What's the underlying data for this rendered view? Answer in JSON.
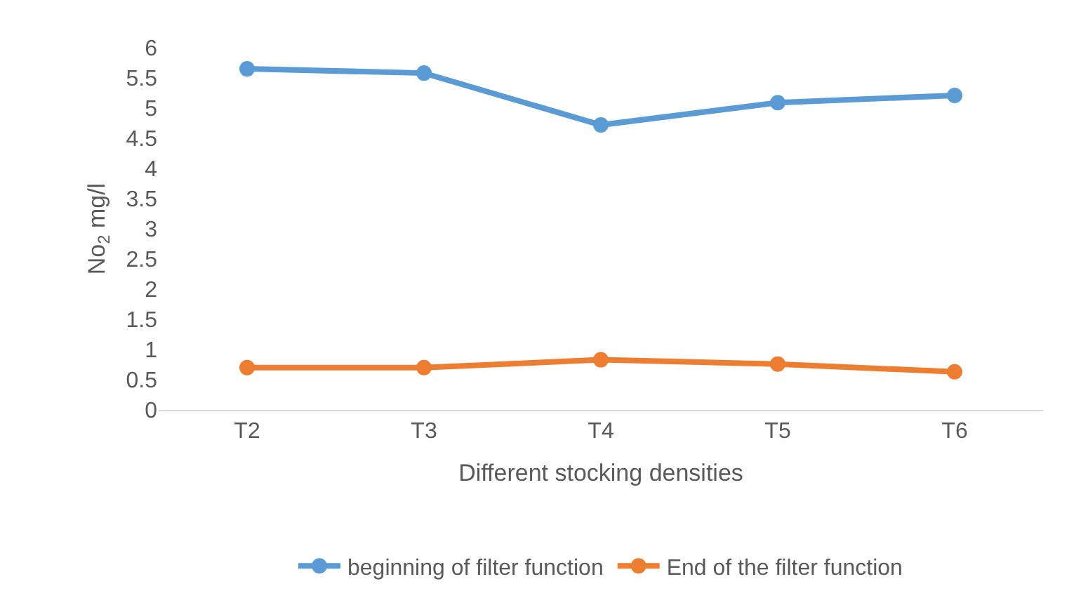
{
  "chart_data": {
    "type": "line",
    "xlabel": "Different stocking densities",
    "ylabel": "No$_{2}$ mg/l",
    "categories": [
      "T2",
      "T3",
      "T4",
      "T5",
      "T6"
    ],
    "series": [
      {
        "name": "beginning of filter function",
        "color": "#5b9bd5",
        "values": [
          5.65,
          5.58,
          4.72,
          5.09,
          5.21
        ]
      },
      {
        "name": "End of the filter function",
        "color": "#ed7d31",
        "values": [
          0.7,
          0.7,
          0.83,
          0.76,
          0.63
        ]
      }
    ],
    "ylim": [
      0,
      6
    ],
    "yticks": [
      0,
      0.5,
      1,
      1.5,
      2,
      2.5,
      3,
      3.5,
      4,
      4.5,
      5,
      5.5,
      6
    ],
    "legend": "bottom",
    "marker": "circle",
    "line_style": "solid"
  }
}
